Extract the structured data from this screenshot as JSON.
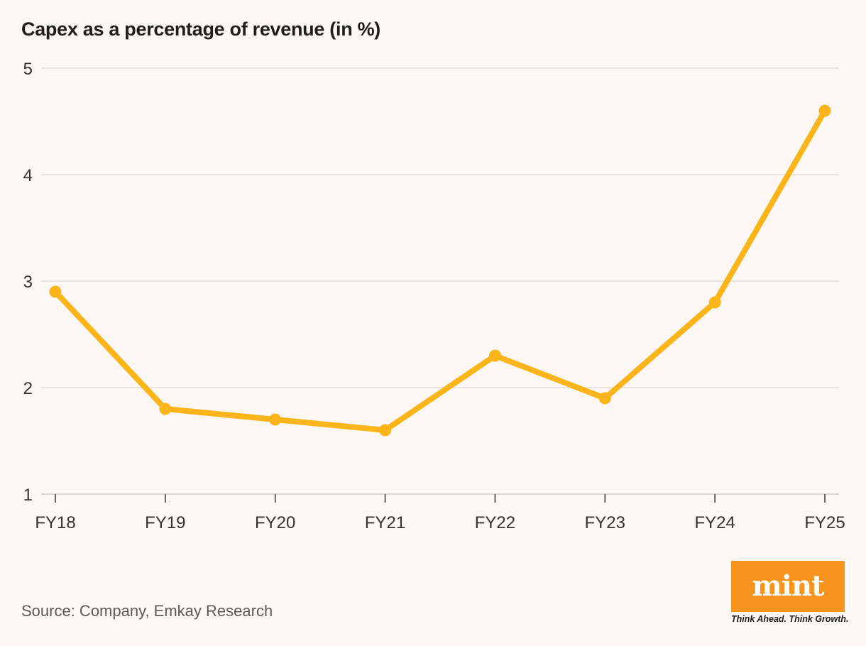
{
  "chart_data": {
    "type": "line",
    "title": "Capex as a percentage of revenue (in %)",
    "categories": [
      "FY18",
      "FY19",
      "FY20",
      "FY21",
      "FY22",
      "FY23",
      "FY24",
      "FY25"
    ],
    "series": [
      {
        "values": [
          2.9,
          1.8,
          1.7,
          1.6,
          2.3,
          1.9,
          2.8,
          4.6
        ]
      }
    ],
    "ylim": [
      1,
      5
    ],
    "yticks": [
      1,
      2,
      3,
      4,
      5
    ],
    "grid": true,
    "line_color": "#fbb51b",
    "grid_color": "#e2dddb"
  },
  "source": "Source: Company, Emkay Research",
  "logo": {
    "text": "mint",
    "tagline": "Think Ahead. Think Growth.",
    "color": "#f7941d"
  }
}
